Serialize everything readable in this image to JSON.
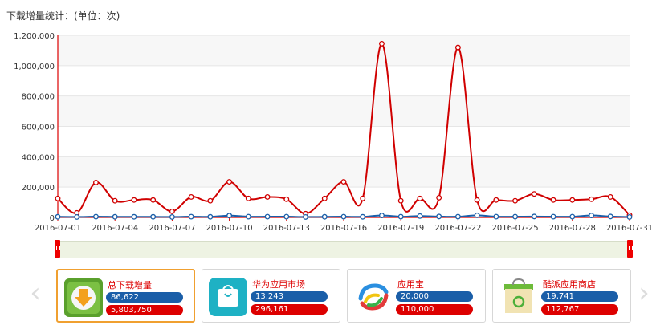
{
  "header": {
    "title": "下载增量统计：(单位：次)"
  },
  "colors": {
    "accent": "#d00000",
    "secondary": "#1a5ea8",
    "active_border": "#f0a030"
  },
  "chart_data": {
    "type": "line",
    "ylim": [
      0,
      1200000
    ],
    "y_ticks": [
      "0",
      "200,000",
      "400,000",
      "600,000",
      "800,000",
      "1,000,000",
      "1,200,000"
    ],
    "x_tick_labels": [
      "2016-07-01",
      "2016-07-04",
      "2016-07-07",
      "2016-07-10",
      "2016-07-13",
      "2016-07-16",
      "2016-07-19",
      "2016-07-22",
      "2016-07-25",
      "2016-07-28",
      "2016-07-31"
    ],
    "x": [
      "2016-07-01",
      "2016-07-02",
      "2016-07-03",
      "2016-07-04",
      "2016-07-05",
      "2016-07-06",
      "2016-07-07",
      "2016-07-08",
      "2016-07-09",
      "2016-07-10",
      "2016-07-11",
      "2016-07-12",
      "2016-07-13",
      "2016-07-14",
      "2016-07-15",
      "2016-07-16",
      "2016-07-17",
      "2016-07-18",
      "2016-07-19",
      "2016-07-20",
      "2016-07-21",
      "2016-07-22",
      "2016-07-23",
      "2016-07-24",
      "2016-07-25",
      "2016-07-26",
      "2016-07-27",
      "2016-07-28",
      "2016-07-29",
      "2016-07-30",
      "2016-07-31"
    ],
    "grid": "horizontal",
    "series": [
      {
        "color": "#d00000",
        "values": [
          125000,
          30000,
          230000,
          110000,
          115000,
          115000,
          40000,
          135000,
          110000,
          235000,
          125000,
          135000,
          120000,
          25000,
          125000,
          235000,
          125000,
          1145000,
          110000,
          125000,
          130000,
          1120000,
          115000,
          115000,
          110000,
          155000,
          115000,
          115000,
          120000,
          135000,
          15000
        ]
      },
      {
        "color": "#1a5ea8",
        "values": [
          4000,
          3000,
          5000,
          4000,
          4000,
          4000,
          3000,
          5000,
          4000,
          12000,
          5000,
          5000,
          5000,
          3000,
          4000,
          5000,
          4000,
          13000,
          5000,
          9000,
          6000,
          5000,
          14000,
          5000,
          5000,
          6000,
          5000,
          5000,
          13000,
          6000,
          3000
        ]
      }
    ]
  },
  "stores": [
    {
      "name": "总下载增量",
      "count": "86,622",
      "total": "5,803,750",
      "icon": "download-arrow-icon"
    },
    {
      "name": "华为应用市场",
      "count": "13,243",
      "total": "296,161",
      "icon": "huawei-bag-icon",
      "brand": "HUAWEI"
    },
    {
      "name": "应用宝",
      "count": "20,000",
      "total": "110,000",
      "icon": "yingyongbao-swirl-icon"
    },
    {
      "name": "酷派应用商店",
      "count": "19,741",
      "total": "112,767",
      "icon": "coolpad-bag-icon"
    }
  ]
}
